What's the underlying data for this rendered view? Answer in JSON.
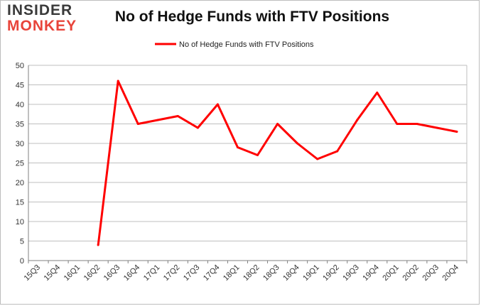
{
  "logo": {
    "line1": "INSIDER",
    "line2": "MONKEY"
  },
  "chart_data": {
    "type": "line",
    "title": "No of Hedge Funds with FTV Positions",
    "categories": [
      "15Q3",
      "15Q4",
      "16Q1",
      "16Q2",
      "16Q3",
      "16Q4",
      "17Q1",
      "17Q2",
      "17Q3",
      "17Q4",
      "18Q1",
      "18Q2",
      "18Q3",
      "18Q4",
      "19Q1",
      "19Q2",
      "19Q3",
      "19Q4",
      "20Q1",
      "20Q2",
      "20Q3",
      "20Q4"
    ],
    "series": [
      {
        "name": "No of Hedge Funds with FTV Positions",
        "color": "#ff0000",
        "values": [
          null,
          null,
          null,
          4,
          46,
          35,
          36,
          37,
          34,
          40,
          29,
          27,
          35,
          30,
          26,
          28,
          36,
          43,
          35,
          35,
          34,
          33
        ]
      }
    ],
    "ylim": [
      0,
      50
    ],
    "yticks": [
      0,
      5,
      10,
      15,
      20,
      25,
      30,
      35,
      40,
      45,
      50
    ],
    "grid": true,
    "legend": "top-center",
    "xlabel": "",
    "ylabel": ""
  }
}
